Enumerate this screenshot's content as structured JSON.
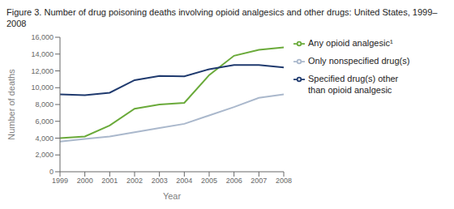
{
  "chart_data": {
    "type": "line",
    "title": "Figure 3. Number of drug poisoning deaths involving opioid analgesics and other drugs: United States, 1999–2008",
    "xlabel": "Year",
    "ylabel": "Number of deaths",
    "x": [
      1999,
      2000,
      2001,
      2002,
      2003,
      2004,
      2005,
      2006,
      2007,
      2008
    ],
    "xlim": [
      1999,
      2008
    ],
    "xticks": [
      1999,
      2000,
      2001,
      2002,
      2003,
      2004,
      2005,
      2006,
      2007,
      2008
    ],
    "ylim": [
      0,
      16000
    ],
    "yticks": [
      0,
      {
        "value": 2000,
        "label": "2,000"
      },
      {
        "value": 4000,
        "label": "4,000"
      },
      {
        "value": 6000,
        "label": "6,000"
      },
      {
        "value": 8000,
        "label": "8,000"
      },
      {
        "value": 10000,
        "label": "10,000"
      },
      {
        "value": 12000,
        "label": "12,000"
      },
      {
        "value": 14000,
        "label": "14,000"
      },
      {
        "value": 16000,
        "label": "16,000"
      }
    ],
    "grid": false,
    "legend": "right",
    "series": [
      {
        "name": "Any opioid analgesic¹",
        "color": "#6aaa3a",
        "values": [
          4000,
          4200,
          5500,
          7500,
          8000,
          8200,
          11500,
          13800,
          14500,
          14800
        ]
      },
      {
        "name": "Specified drug(s) other\nthan opioid analgesic",
        "color": "#1f3a6e",
        "values": [
          9200,
          9100,
          9400,
          10900,
          11400,
          11350,
          12200,
          12700,
          12700,
          12400
        ]
      },
      {
        "name": "Only nonspecified drug(s)",
        "color": "#aab8cc",
        "values": [
          3600,
          3900,
          4200,
          4700,
          5200,
          5700,
          6700,
          7700,
          8800,
          9200
        ]
      }
    ]
  }
}
